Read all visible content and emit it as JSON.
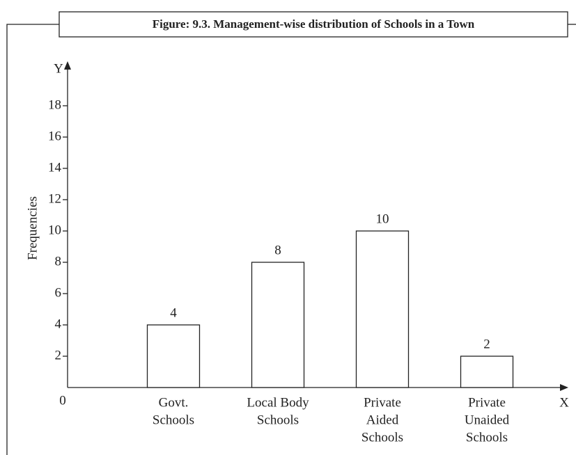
{
  "chart_data": {
    "type": "bar",
    "title": "Figure: 9.3. Management-wise distribution of Schools in a Town",
    "y_label": "Frequencies",
    "y_axis_letter": "Y",
    "x_axis_letter": "X",
    "origin_label": "0",
    "categories": [
      [
        "Govt.",
        "Schools"
      ],
      [
        "Local Body",
        "Schools"
      ],
      [
        "Private",
        "Aided",
        "Schools"
      ],
      [
        "Private",
        "Unaided",
        "Schools"
      ]
    ],
    "values": [
      4,
      8,
      10,
      2
    ],
    "color": "#ffffff",
    "ylim": [
      0,
      20.5
    ],
    "yticks": [
      2,
      4,
      6,
      8,
      10,
      12,
      14,
      16,
      18
    ],
    "grid": false
  }
}
